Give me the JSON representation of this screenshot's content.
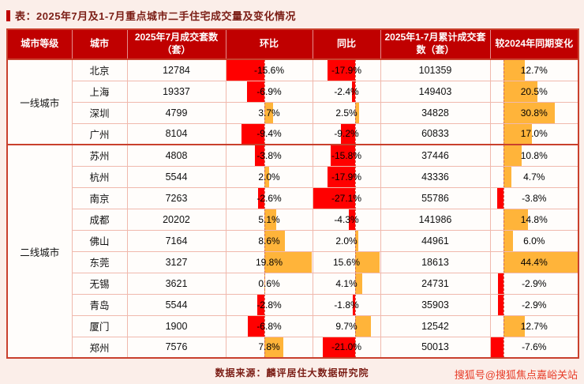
{
  "chart_data": {
    "type": "table",
    "title": "表：2025年7月及1-7月重点城市二手住宅成交量及变化情况",
    "columns": {
      "tier": "城市等级",
      "city": "城市",
      "jul": "2025年7月成交套数（套）",
      "mom": "环比",
      "yoy": "同比",
      "cum": "2025年1-7月累计成交套数（套）",
      "change": "较2024年同期变化"
    },
    "bar_columns": [
      "mom",
      "yoy",
      "change"
    ],
    "groups": [
      {
        "tier": "一线城市",
        "rows": [
          {
            "city": "北京",
            "jul": "12784",
            "mom": -15.6,
            "yoy": -17.9,
            "cum": "101359",
            "change": 12.7
          },
          {
            "city": "上海",
            "jul": "19337",
            "mom": -6.9,
            "yoy": -2.4,
            "cum": "149403",
            "change": 20.5
          },
          {
            "city": "深圳",
            "jul": "4799",
            "mom": 3.7,
            "yoy": 2.5,
            "cum": "34828",
            "change": 30.8
          },
          {
            "city": "广州",
            "jul": "8104",
            "mom": -9.4,
            "yoy": -9.2,
            "cum": "60833",
            "change": 17.0
          }
        ]
      },
      {
        "tier": "二线城市",
        "rows": [
          {
            "city": "苏州",
            "jul": "4808",
            "mom": -3.8,
            "yoy": -15.8,
            "cum": "37446",
            "change": 10.8
          },
          {
            "city": "杭州",
            "jul": "5544",
            "mom": 2.0,
            "yoy": -17.9,
            "cum": "43336",
            "change": 4.7
          },
          {
            "city": "南京",
            "jul": "7263",
            "mom": -2.6,
            "yoy": -27.1,
            "cum": "55786",
            "change": -3.8
          },
          {
            "city": "成都",
            "jul": "20202",
            "mom": 5.1,
            "yoy": -4.3,
            "cum": "141986",
            "change": 14.8
          },
          {
            "city": "佛山",
            "jul": "7164",
            "mom": 8.6,
            "yoy": 2.0,
            "cum": "44961",
            "change": 6.0
          },
          {
            "city": "东莞",
            "jul": "3127",
            "mom": 19.8,
            "yoy": 15.6,
            "cum": "18613",
            "change": 44.4
          },
          {
            "city": "无锡",
            "jul": "3621",
            "mom": 0.6,
            "yoy": 4.1,
            "cum": "24731",
            "change": -2.9
          },
          {
            "city": "青岛",
            "jul": "5544",
            "mom": -2.8,
            "yoy": -1.8,
            "cum": "35903",
            "change": -2.9
          },
          {
            "city": "厦门",
            "jul": "1900",
            "mom": -6.8,
            "yoy": 9.7,
            "cum": "12542",
            "change": 12.7
          },
          {
            "city": "郑州",
            "jul": "7576",
            "mom": 7.8,
            "yoy": -21.0,
            "cum": "50013",
            "change": -7.6
          }
        ]
      }
    ]
  },
  "footer": {
    "source": "数据来源：麟评居住大数据研究院"
  },
  "watermark": "搜狐号@搜狐焦点嘉峪关站",
  "colors": {
    "header_bg": "#c00000",
    "negative_bar": "#ff0000",
    "positive_bar": "#ffb43a",
    "title_text": "#7b1d15"
  }
}
